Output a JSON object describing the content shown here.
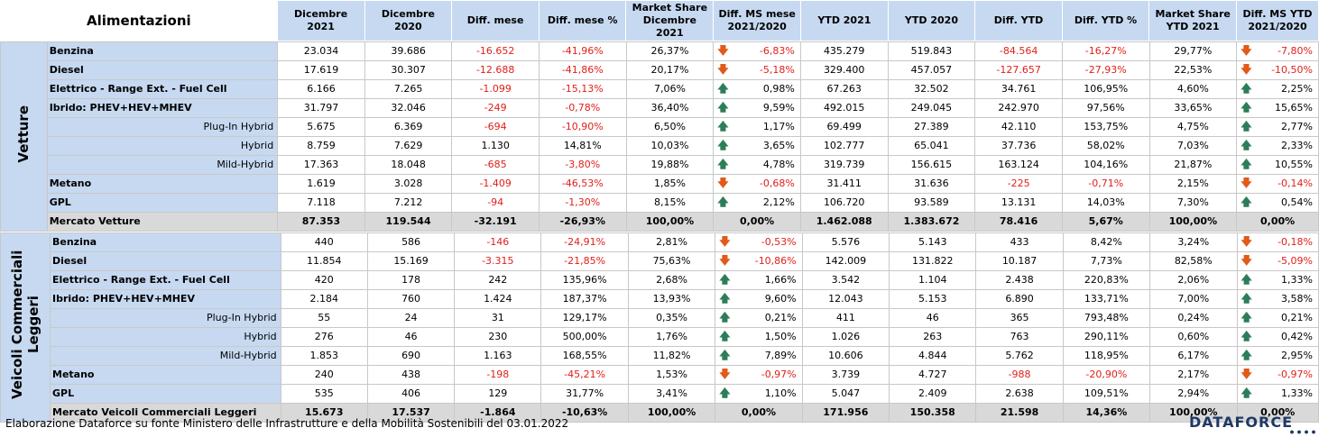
{
  "header": {
    "title": "Alimentazioni",
    "columns": [
      "Dicembre 2021",
      "Dicembre 2020",
      "Diff. mese",
      "Diff. mese %",
      "Market Share Dicembre 2021",
      "Diff. MS mese 2021/2020",
      "YTD 2021",
      "YTD 2020",
      "Diff. YTD",
      "Diff. YTD %",
      "Market Share YTD 2021",
      "Diff. MS YTD 2021/2020"
    ]
  },
  "sections": [
    {
      "name": "Vetture",
      "rows": [
        {
          "label": "Benzina",
          "sub": false,
          "values": [
            "23.034",
            "39.686",
            "-16.652",
            "-41,96%",
            "26,37%",
            "-6,83%",
            "435.279",
            "519.843",
            "-84.564",
            "-16,27%",
            "29,77%",
            "-7,80%"
          ]
        },
        {
          "label": "Diesel",
          "sub": false,
          "values": [
            "17.619",
            "30.307",
            "-12.688",
            "-41,86%",
            "20,17%",
            "-5,18%",
            "329.400",
            "457.057",
            "-127.657",
            "-27,93%",
            "22,53%",
            "-10,50%"
          ]
        },
        {
          "label": "Elettrico - Range Ext. - Fuel Cell",
          "sub": false,
          "values": [
            "6.166",
            "7.265",
            "-1.099",
            "-15,13%",
            "7,06%",
            "0,98%",
            "67.263",
            "32.502",
            "34.761",
            "106,95%",
            "4,60%",
            "2,25%"
          ]
        },
        {
          "label": "Ibrido: PHEV+HEV+MHEV",
          "sub": false,
          "values": [
            "31.797",
            "32.046",
            "-249",
            "-0,78%",
            "36,40%",
            "9,59%",
            "492.015",
            "249.045",
            "242.970",
            "97,56%",
            "33,65%",
            "15,65%"
          ]
        },
        {
          "label": "Plug-In Hybrid",
          "sub": true,
          "values": [
            "5.675",
            "6.369",
            "-694",
            "-10,90%",
            "6,50%",
            "1,17%",
            "69.499",
            "27.389",
            "42.110",
            "153,75%",
            "4,75%",
            "2,77%"
          ]
        },
        {
          "label": "Hybrid",
          "sub": true,
          "values": [
            "8.759",
            "7.629",
            "1.130",
            "14,81%",
            "10,03%",
            "3,65%",
            "102.777",
            "65.041",
            "37.736",
            "58,02%",
            "7,03%",
            "2,33%"
          ]
        },
        {
          "label": "Mild-Hybrid",
          "sub": true,
          "values": [
            "17.363",
            "18.048",
            "-685",
            "-3,80%",
            "19,88%",
            "4,78%",
            "319.739",
            "156.615",
            "163.124",
            "104,16%",
            "21,87%",
            "10,55%"
          ]
        },
        {
          "label": "Metano",
          "sub": false,
          "values": [
            "1.619",
            "3.028",
            "-1.409",
            "-46,53%",
            "1,85%",
            "-0,68%",
            "31.411",
            "31.636",
            "-225",
            "-0,71%",
            "2,15%",
            "-0,14%"
          ]
        },
        {
          "label": "GPL",
          "sub": false,
          "values": [
            "7.118",
            "7.212",
            "-94",
            "-1,30%",
            "8,15%",
            "2,12%",
            "106.720",
            "93.589",
            "13.131",
            "14,03%",
            "7,30%",
            "0,54%"
          ]
        }
      ],
      "total": {
        "label": "Mercato Vetture",
        "values": [
          "87.353",
          "119.544",
          "-32.191",
          "-26,93%",
          "100,00%",
          "0,00%",
          "1.462.088",
          "1.383.672",
          "78.416",
          "5,67%",
          "100,00%",
          "0,00%"
        ]
      }
    },
    {
      "name": "Veicoli Commerciali Leggeri",
      "rows": [
        {
          "label": "Benzina",
          "sub": false,
          "values": [
            "440",
            "586",
            "-146",
            "-24,91%",
            "2,81%",
            "-0,53%",
            "5.576",
            "5.143",
            "433",
            "8,42%",
            "3,24%",
            "-0,18%"
          ]
        },
        {
          "label": "Diesel",
          "sub": false,
          "values": [
            "11.854",
            "15.169",
            "-3.315",
            "-21,85%",
            "75,63%",
            "-10,86%",
            "142.009",
            "131.822",
            "10.187",
            "7,73%",
            "82,58%",
            "-5,09%"
          ]
        },
        {
          "label": "Elettrico - Range Ext. - Fuel Cell",
          "sub": false,
          "values": [
            "420",
            "178",
            "242",
            "135,96%",
            "2,68%",
            "1,66%",
            "3.542",
            "1.104",
            "2.438",
            "220,83%",
            "2,06%",
            "1,33%"
          ]
        },
        {
          "label": "Ibrido: PHEV+HEV+MHEV",
          "sub": false,
          "values": [
            "2.184",
            "760",
            "1.424",
            "187,37%",
            "13,93%",
            "9,60%",
            "12.043",
            "5.153",
            "6.890",
            "133,71%",
            "7,00%",
            "3,58%"
          ]
        },
        {
          "label": "Plug-In Hybrid",
          "sub": true,
          "values": [
            "55",
            "24",
            "31",
            "129,17%",
            "0,35%",
            "0,21%",
            "411",
            "46",
            "365",
            "793,48%",
            "0,24%",
            "0,21%"
          ]
        },
        {
          "label": "Hybrid",
          "sub": true,
          "values": [
            "276",
            "46",
            "230",
            "500,00%",
            "1,76%",
            "1,50%",
            "1.026",
            "263",
            "763",
            "290,11%",
            "0,60%",
            "0,42%"
          ]
        },
        {
          "label": "Mild-Hybrid",
          "sub": true,
          "values": [
            "1.853",
            "690",
            "1.163",
            "168,55%",
            "11,82%",
            "7,89%",
            "10.606",
            "4.844",
            "5.762",
            "118,95%",
            "6,17%",
            "2,95%"
          ]
        },
        {
          "label": "Metano",
          "sub": false,
          "values": [
            "240",
            "438",
            "-198",
            "-45,21%",
            "1,53%",
            "-0,97%",
            "3.739",
            "4.727",
            "-988",
            "-20,90%",
            "2,17%",
            "-0,97%"
          ]
        },
        {
          "label": "GPL",
          "sub": false,
          "values": [
            "535",
            "406",
            "129",
            "31,77%",
            "3,41%",
            "1,10%",
            "5.047",
            "2.409",
            "2.638",
            "109,51%",
            "2,94%",
            "1,33%"
          ]
        }
      ],
      "total": {
        "label": "Mercato Veicoli Commerciali Leggeri",
        "values": [
          "15.673",
          "17.537",
          "-1.864",
          "-10,63%",
          "100,00%",
          "0,00%",
          "171.956",
          "150.358",
          "21.598",
          "14,36%",
          "100,00%",
          "0,00%"
        ]
      }
    }
  ],
  "footer": {
    "source": "Elaborazione Dataforce su fonte Ministero delle Infrastrutture e della Mobilità Sostenibili del 03.01.2022"
  },
  "logo": {
    "text": "DATAFORCE"
  },
  "colors": {
    "header_bg": "#c6d9f1",
    "negative": "#e0201b",
    "arrow_up": "#2e7d5a",
    "arrow_down": "#e05a1a",
    "total_bg": "#d9d9d9"
  },
  "icons": {
    "up": "arrow-up-icon",
    "down": "arrow-down-icon"
  }
}
